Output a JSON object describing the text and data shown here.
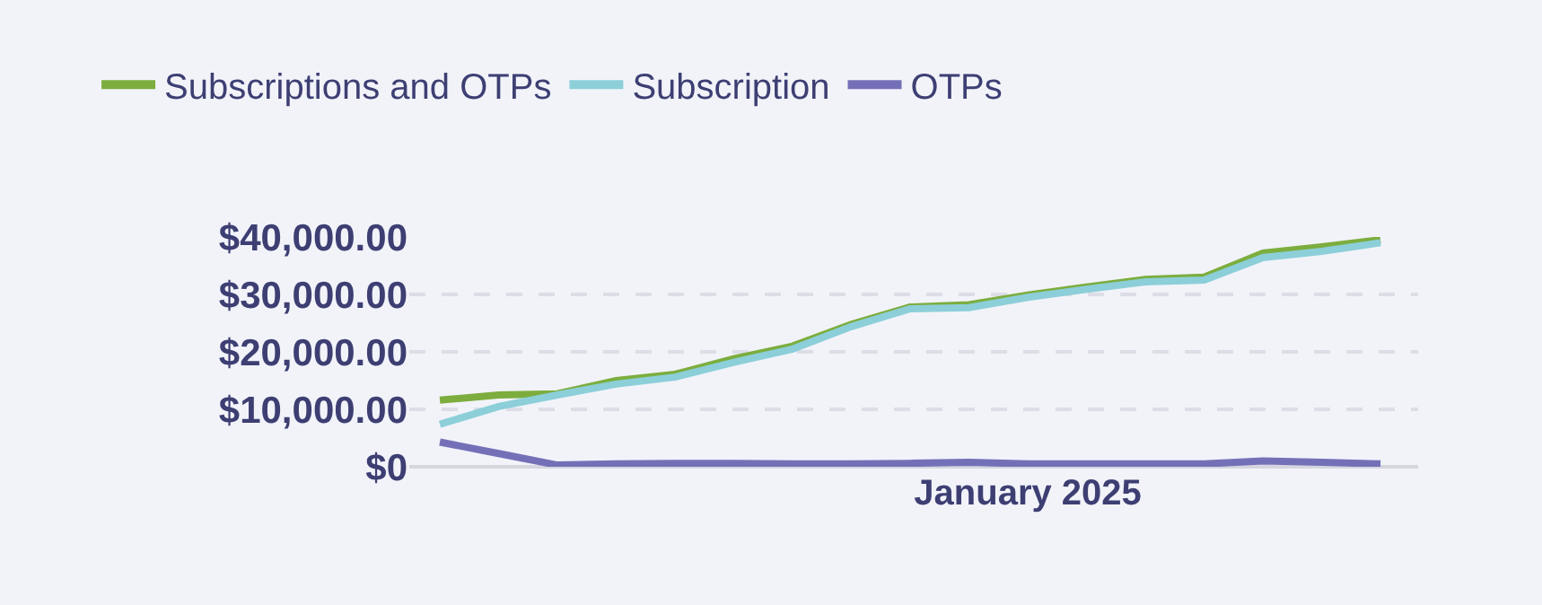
{
  "chart_data": {
    "type": "line",
    "categories": [
      null,
      null,
      null,
      null,
      null,
      null,
      null,
      null,
      null,
      null,
      "January 2025",
      null,
      null,
      null,
      null,
      null,
      null
    ],
    "series": [
      {
        "name": "Subscriptions and OTPs",
        "color": "#7cad3e",
        "values": [
          11600,
          12500,
          12700,
          15000,
          16100,
          18800,
          21000,
          24800,
          27800,
          28200,
          29900,
          31300,
          32600,
          33000,
          37200,
          38300,
          39500
        ]
      },
      {
        "name": "Subscription",
        "color": "#8ccfd9",
        "values": [
          7400,
          10500,
          12500,
          14400,
          15600,
          18200,
          20500,
          24400,
          27500,
          27700,
          29500,
          30900,
          32200,
          32500,
          36400,
          37500,
          39000
        ]
      },
      {
        "name": "OTPs",
        "color": "#7470b8",
        "values": [
          4300,
          2300,
          300,
          500,
          600,
          600,
          500,
          500,
          600,
          800,
          500,
          500,
          500,
          500,
          1000,
          800,
          500
        ]
      }
    ],
    "ylim": [
      0,
      40000
    ],
    "yticks": [
      {
        "value": 0,
        "label": "$0"
      },
      {
        "value": 10000,
        "label": "$10,000.00"
      },
      {
        "value": 20000,
        "label": "$20,000.00"
      },
      {
        "value": 30000,
        "label": "$30,000.00"
      },
      {
        "value": 40000,
        "label": "$40,000.00"
      }
    ],
    "grid": "y",
    "legend": "top left",
    "marker": "none",
    "line_style": "solid"
  }
}
